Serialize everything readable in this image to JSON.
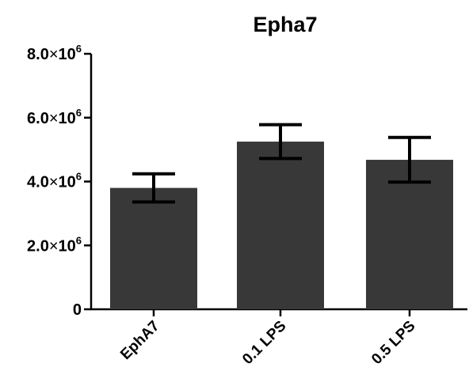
{
  "chart_data": {
    "type": "bar",
    "title": "Epha7",
    "xlabel": "",
    "ylabel": "",
    "categories": [
      "EphA7",
      "0.1 LPS",
      "0.5 LPS"
    ],
    "values": [
      3800000,
      5250000,
      4680000
    ],
    "errors": [
      440000,
      530000,
      700000
    ],
    "ylim": [
      0,
      8000000
    ],
    "yticks": [
      {
        "value": 0,
        "mantissa": "0",
        "times": "",
        "base": "",
        "exp": ""
      },
      {
        "value": 2000000,
        "mantissa": "2.0",
        "times": "×",
        "base": "10",
        "exp": "6"
      },
      {
        "value": 4000000,
        "mantissa": "4.0",
        "times": "×",
        "base": "10",
        "exp": "6"
      },
      {
        "value": 6000000,
        "mantissa": "6.0",
        "times": "×",
        "base": "10",
        "exp": "6"
      },
      {
        "value": 8000000,
        "mantissa": "8.0",
        "times": "×",
        "base": "10",
        "exp": "6"
      }
    ],
    "grid": false,
    "legend": "none",
    "bar_color": "#383838",
    "axis_color": "#000000"
  }
}
